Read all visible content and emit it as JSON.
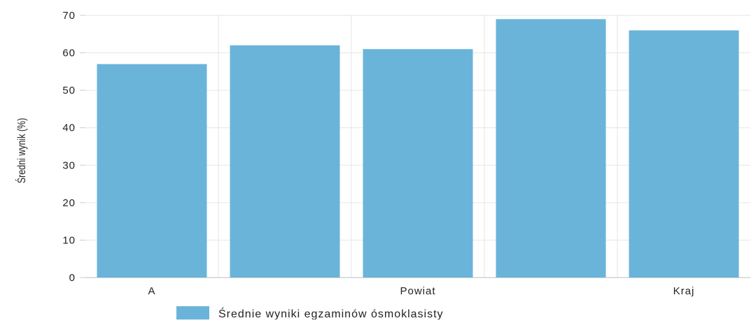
{
  "chart_data": {
    "type": "bar",
    "categories": [
      "A",
      "",
      "Powiat",
      "",
      "Kraj"
    ],
    "series": [
      {
        "name": "Średnie wyniki egzaminów ósmoklasisty",
        "values": [
          57,
          62,
          61,
          69,
          66
        ],
        "color": "#6ab4da"
      }
    ],
    "ylabel": "Średni wynik (%)",
    "xlabel": "",
    "ylim": [
      0,
      70
    ],
    "yticks": [
      0,
      10,
      20,
      30,
      40,
      50,
      60,
      70
    ],
    "grid": true,
    "legend_position": "bottom"
  }
}
